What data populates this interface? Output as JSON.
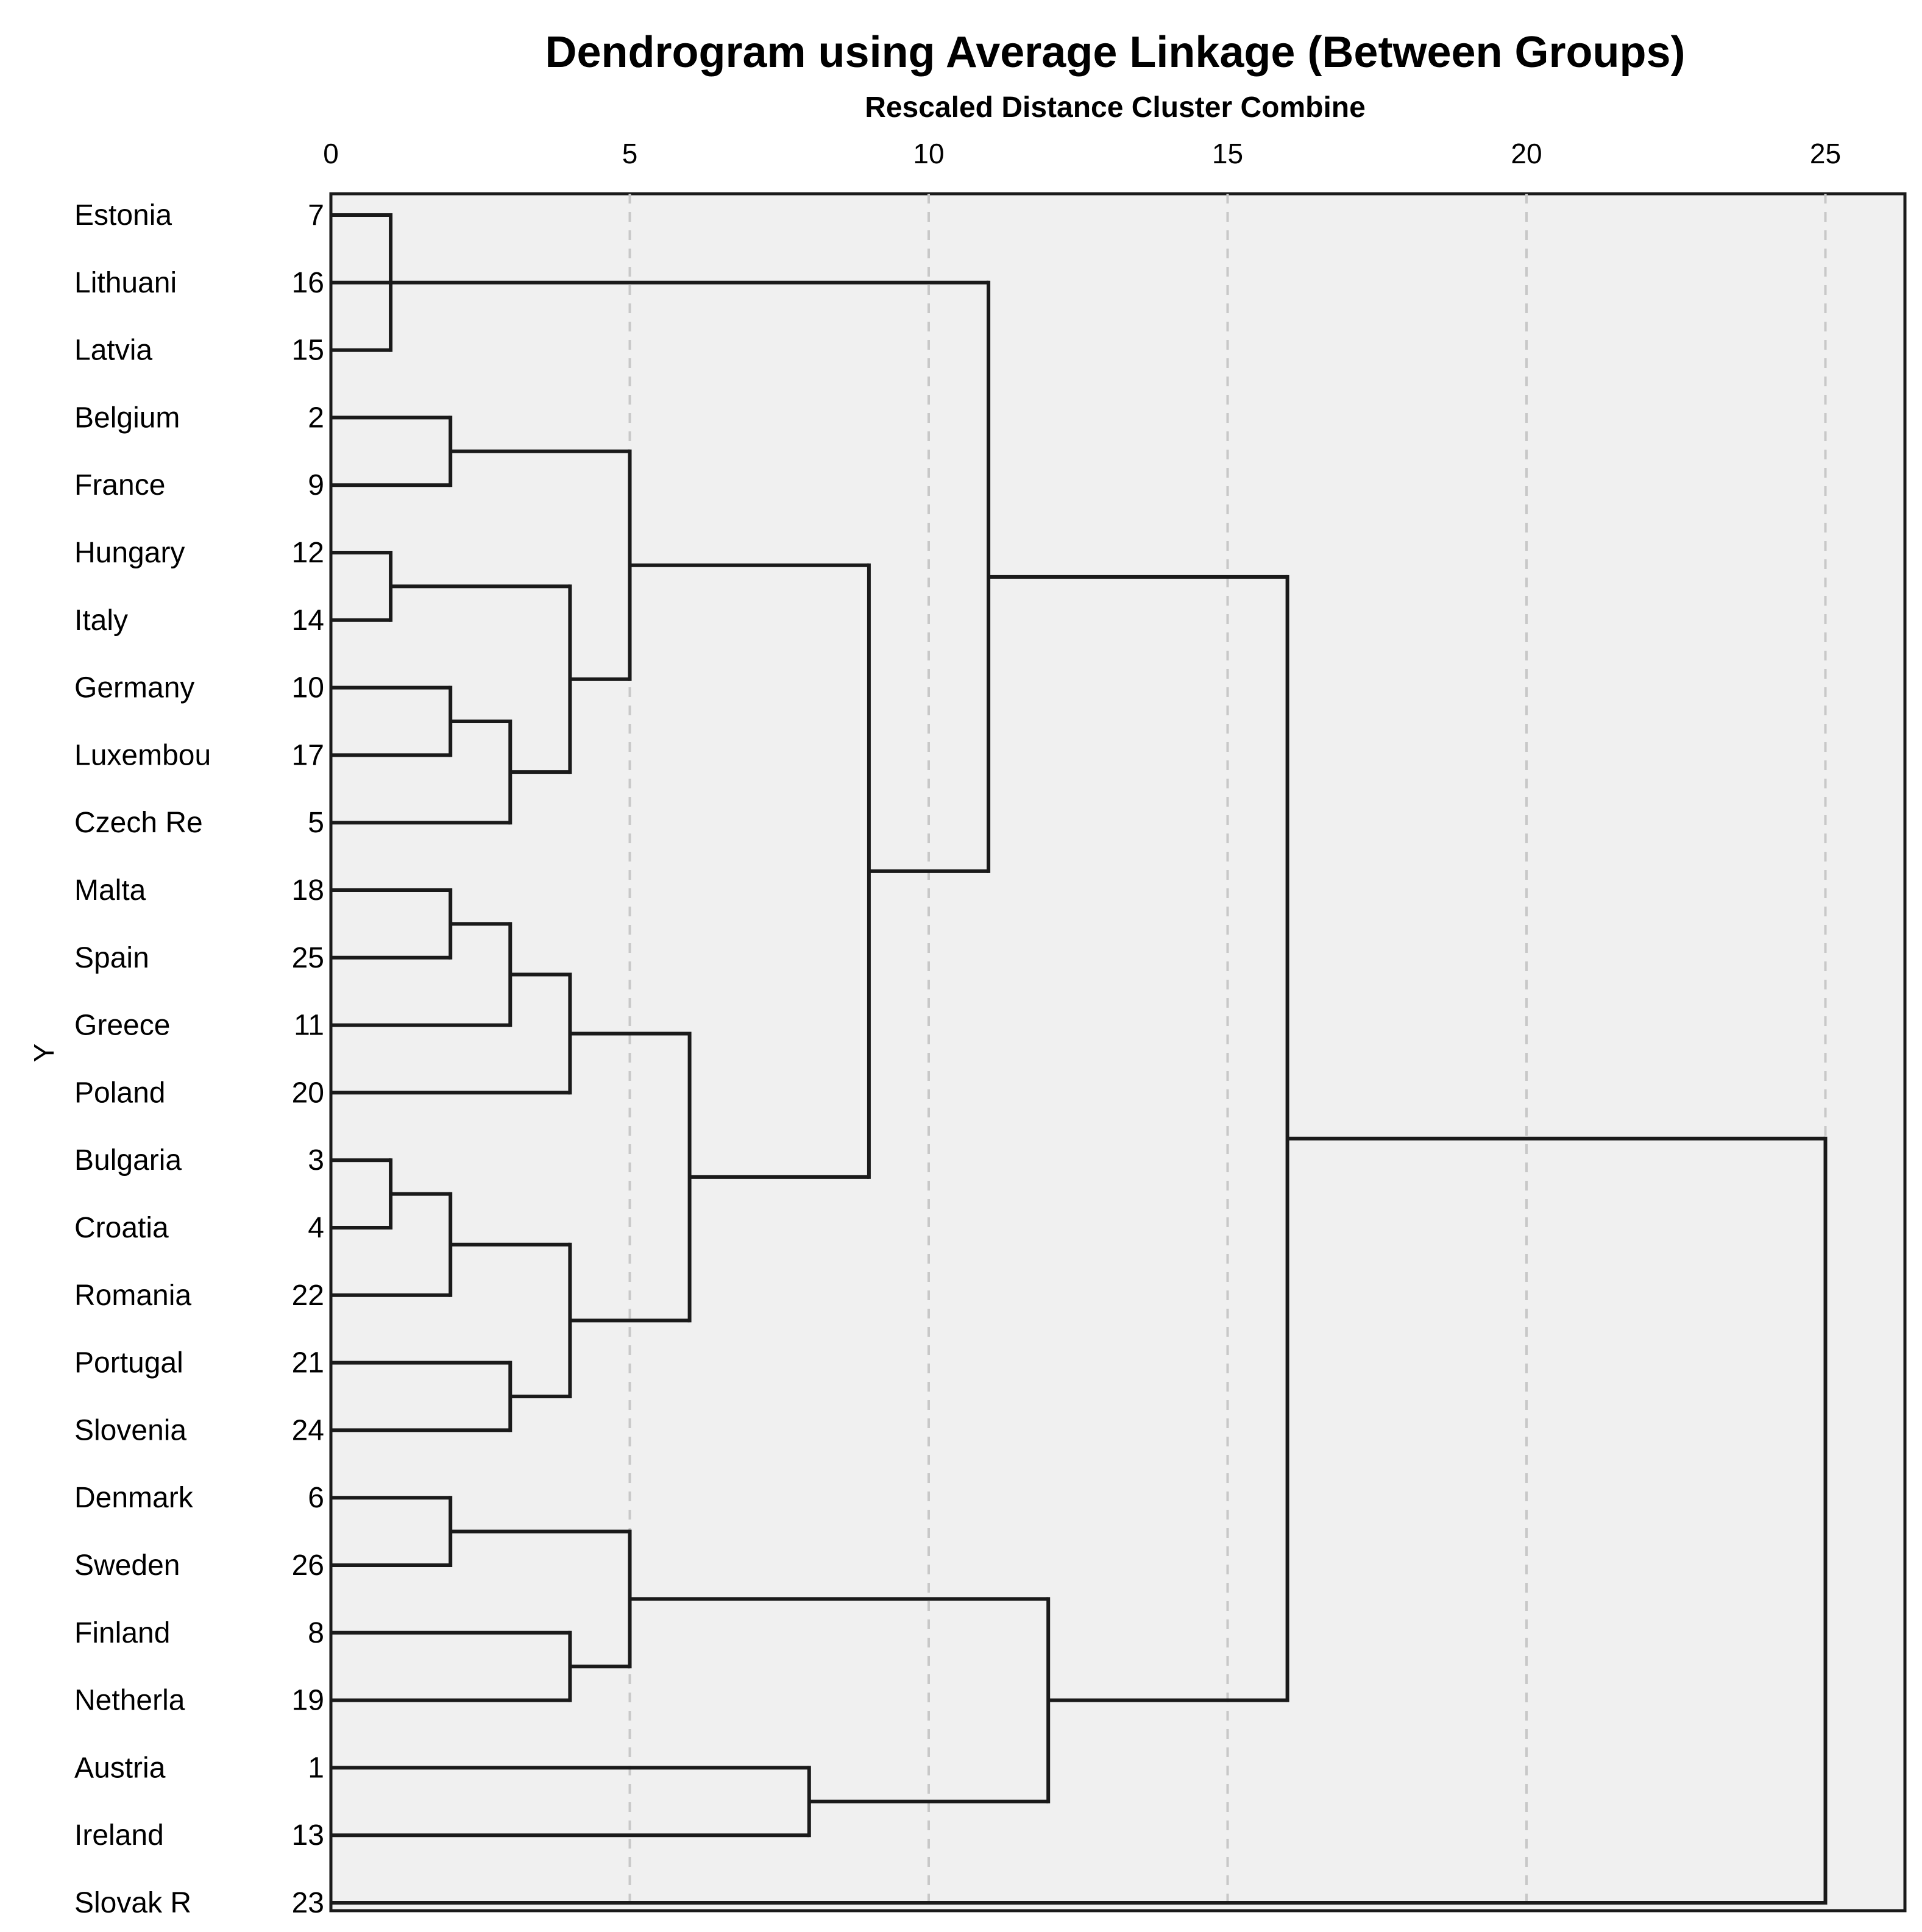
{
  "chart_data": {
    "type": "dendrogram",
    "title": "Dendrogram using Average Linkage (Between Groups)",
    "subtitle": "Rescaled Distance Cluster Combine",
    "ylabel": "Y",
    "xlim": [
      0,
      25
    ],
    "xticks": [
      0,
      5,
      10,
      15,
      20,
      25
    ],
    "grid": true,
    "leaves": [
      {
        "label": "Estonia",
        "case": "7"
      },
      {
        "label": "Lithuani",
        "case": "16"
      },
      {
        "label": "Latvia",
        "case": "15"
      },
      {
        "label": "Belgium",
        "case": "2"
      },
      {
        "label": "France",
        "case": "9"
      },
      {
        "label": "Hungary",
        "case": "12"
      },
      {
        "label": "Italy",
        "case": "14"
      },
      {
        "label": "Germany",
        "case": "10"
      },
      {
        "label": "Luxembou",
        "case": "17"
      },
      {
        "label": "Czech Re",
        "case": "5"
      },
      {
        "label": "Malta",
        "case": "18"
      },
      {
        "label": "Spain",
        "case": "25"
      },
      {
        "label": "Greece",
        "case": "11"
      },
      {
        "label": "Poland",
        "case": "20"
      },
      {
        "label": "Bulgaria",
        "case": "3"
      },
      {
        "label": "Croatia",
        "case": "4"
      },
      {
        "label": "Romania",
        "case": "22"
      },
      {
        "label": "Portugal",
        "case": "21"
      },
      {
        "label": "Slovenia",
        "case": "24"
      },
      {
        "label": "Denmark",
        "case": "6"
      },
      {
        "label": "Sweden",
        "case": "26"
      },
      {
        "label": "Finland",
        "case": "8"
      },
      {
        "label": "Netherla",
        "case": "19"
      },
      {
        "label": "Austria",
        "case": "1"
      },
      {
        "label": "Ireland",
        "case": "13"
      },
      {
        "label": "Slovak R",
        "case": "23"
      }
    ],
    "merges": [
      {
        "id": "A",
        "children": [
          "L0",
          "L1",
          "L2"
        ],
        "distance": 1
      },
      {
        "id": "B",
        "children": [
          "L3",
          "L4"
        ],
        "distance": 2
      },
      {
        "id": "C",
        "children": [
          "L5",
          "L6"
        ],
        "distance": 1
      },
      {
        "id": "D",
        "children": [
          "L7",
          "L8"
        ],
        "distance": 2
      },
      {
        "id": "E",
        "children": [
          "D",
          "L9"
        ],
        "distance": 3
      },
      {
        "id": "F",
        "children": [
          "C",
          "E"
        ],
        "distance": 4
      },
      {
        "id": "G",
        "children": [
          "B",
          "F"
        ],
        "distance": 5
      },
      {
        "id": "H",
        "children": [
          "L10",
          "L11"
        ],
        "distance": 2
      },
      {
        "id": "I",
        "children": [
          "H",
          "L12"
        ],
        "distance": 3
      },
      {
        "id": "J",
        "children": [
          "I",
          "L13"
        ],
        "distance": 4
      },
      {
        "id": "K",
        "children": [
          "L14",
          "L15"
        ],
        "distance": 1
      },
      {
        "id": "M",
        "children": [
          "K",
          "L16"
        ],
        "distance": 2
      },
      {
        "id": "N",
        "children": [
          "L17",
          "L18"
        ],
        "distance": 3
      },
      {
        "id": "O",
        "children": [
          "M",
          "N"
        ],
        "distance": 4
      },
      {
        "id": "P",
        "children": [
          "J",
          "O"
        ],
        "distance": 6
      },
      {
        "id": "Q",
        "children": [
          "G",
          "P"
        ],
        "distance": 9
      },
      {
        "id": "R",
        "children": [
          "A",
          "Q"
        ],
        "distance": 11
      },
      {
        "id": "S",
        "children": [
          "L19",
          "L20"
        ],
        "distance": 2
      },
      {
        "id": "T",
        "children": [
          "L21",
          "L22"
        ],
        "distance": 4
      },
      {
        "id": "U",
        "children": [
          "S",
          "T"
        ],
        "distance": 5
      },
      {
        "id": "V",
        "children": [
          "L23",
          "L24"
        ],
        "distance": 8
      },
      {
        "id": "W",
        "children": [
          "U",
          "V"
        ],
        "distance": 12
      },
      {
        "id": "X",
        "children": [
          "R",
          "W"
        ],
        "distance": 16
      },
      {
        "id": "Y",
        "children": [
          "X",
          "L25"
        ],
        "distance": 25
      }
    ]
  }
}
